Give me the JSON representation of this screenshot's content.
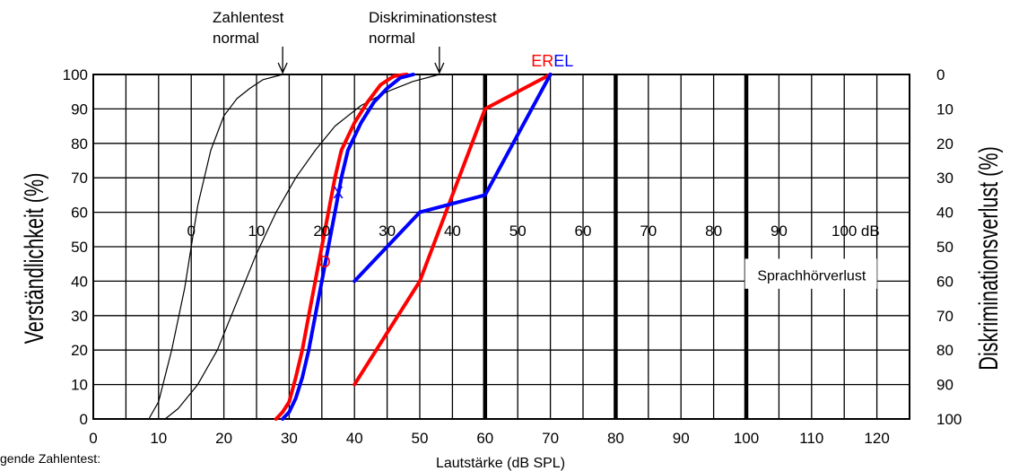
{
  "chart_data": {
    "type": "line",
    "xlabel": "Lautstärke (dB SPL)",
    "ylabel_left": "Verständlichkeit (%)",
    "ylabel_right": "Diskriminationsverlust (%)",
    "xlim": [
      0,
      125
    ],
    "ylim": [
      0,
      100
    ],
    "x_ticks": [
      0,
      10,
      20,
      30,
      40,
      50,
      60,
      70,
      80,
      90,
      100,
      110,
      120
    ],
    "y_ticks_left": [
      0,
      10,
      20,
      30,
      40,
      50,
      60,
      70,
      80,
      90,
      100
    ],
    "y_ticks_right": [
      100,
      90,
      80,
      70,
      60,
      50,
      40,
      30,
      20,
      10,
      0
    ],
    "grid": true,
    "heavy_gridlines_x": [
      60,
      80,
      100
    ],
    "hearing_loss_scale": {
      "ticks": [
        {
          "label": "0",
          "x": 15
        },
        {
          "label": "10",
          "x": 25
        },
        {
          "label": "20",
          "x": 35
        },
        {
          "label": "30",
          "x": 45
        },
        {
          "label": "40",
          "x": 55
        },
        {
          "label": "50",
          "x": 65
        },
        {
          "label": "60",
          "x": 75
        },
        {
          "label": "70",
          "x": 85
        },
        {
          "label": "80",
          "x": 95
        },
        {
          "label": "90",
          "x": 105
        },
        {
          "label": "100",
          "x": 115
        }
      ],
      "unit": "dB",
      "label": "Sprachhörverlust"
    },
    "annotations": {
      "zahlentest_line1": "Zahlentest",
      "zahlentest_line2": "normal",
      "zahlentest_x": 29,
      "diskrimination_line1": "Diskriminationstest",
      "diskrimination_line2": "normal",
      "diskrimination_x": 53,
      "er_label": "ER",
      "el_label": "EL",
      "o_label": "O",
      "x_label": "X",
      "legend_text": "gende Zahlentest:"
    },
    "colors": {
      "right_ear": "#ff0000",
      "left_ear": "#0000ff",
      "reference": "#000000"
    },
    "series": [
      {
        "key": "ref_numbers",
        "color": "#000000",
        "points": [
          [
            8.5,
            0
          ],
          [
            10,
            5
          ],
          [
            12,
            20
          ],
          [
            14,
            38
          ],
          [
            15,
            50
          ],
          [
            16,
            62
          ],
          [
            18,
            78
          ],
          [
            20,
            88
          ],
          [
            22,
            93
          ],
          [
            24,
            96
          ],
          [
            26,
            98.5
          ],
          [
            29,
            100
          ]
        ]
      },
      {
        "key": "ref_discrimination",
        "color": "#000000",
        "points": [
          [
            11,
            0
          ],
          [
            13,
            3
          ],
          [
            16,
            10
          ],
          [
            19,
            20
          ],
          [
            22,
            34
          ],
          [
            25,
            48
          ],
          [
            28,
            60
          ],
          [
            31,
            70
          ],
          [
            34,
            78
          ],
          [
            37,
            85
          ],
          [
            41,
            91
          ],
          [
            45,
            95
          ],
          [
            49,
            98
          ],
          [
            53,
            100
          ]
        ]
      },
      {
        "key": "right_words",
        "color": "#ff0000",
        "points": [
          [
            28,
            0
          ],
          [
            29,
            2
          ],
          [
            30,
            5
          ],
          [
            31,
            12
          ],
          [
            32,
            20
          ],
          [
            33,
            30
          ],
          [
            34,
            40
          ],
          [
            35,
            50
          ],
          [
            36,
            60
          ],
          [
            37,
            70
          ],
          [
            38,
            78
          ],
          [
            40,
            86
          ],
          [
            42,
            92
          ],
          [
            44,
            97
          ],
          [
            46,
            99.5
          ],
          [
            48,
            100
          ]
        ]
      },
      {
        "key": "left_words",
        "color": "#0000ff",
        "points": [
          [
            29,
            0
          ],
          [
            30,
            2
          ],
          [
            31,
            6
          ],
          [
            32,
            12
          ],
          [
            33,
            20
          ],
          [
            34,
            30
          ],
          [
            35,
            40
          ],
          [
            36,
            50
          ],
          [
            37,
            60
          ],
          [
            38,
            70
          ],
          [
            39,
            78
          ],
          [
            41,
            86
          ],
          [
            43,
            92
          ],
          [
            45,
            96
          ],
          [
            47,
            99
          ],
          [
            49,
            100
          ]
        ]
      },
      {
        "key": "right_discrimination",
        "color": "#ff0000",
        "points": [
          [
            40,
            10
          ],
          [
            50,
            40
          ],
          [
            60,
            90
          ],
          [
            70,
            100
          ]
        ]
      },
      {
        "key": "left_discrimination",
        "color": "#0000ff",
        "points": [
          [
            40,
            40
          ],
          [
            50,
            60
          ],
          [
            60,
            65
          ],
          [
            70,
            100
          ]
        ]
      }
    ]
  }
}
